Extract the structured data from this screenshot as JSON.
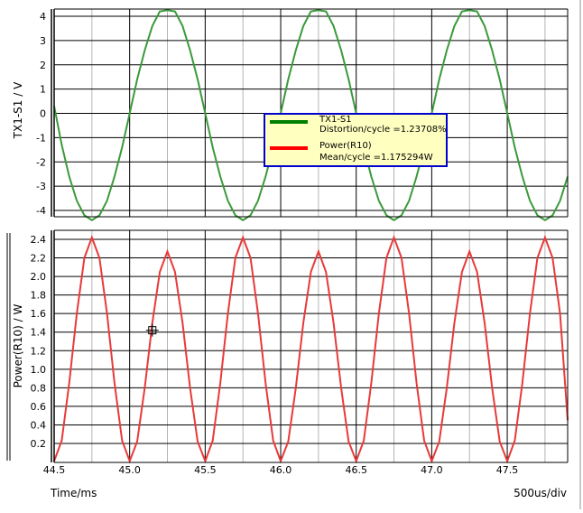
{
  "chart_data": [
    {
      "type": "line",
      "title": "",
      "ylabel": "TX1-S1 / V",
      "xlim": [
        44.5,
        47.9
      ],
      "ylim": [
        -4.4,
        4.4
      ],
      "yticks": [
        4,
        3,
        2,
        1,
        0,
        -1,
        -2,
        -3,
        -4
      ],
      "grid": true,
      "series": [
        {
          "name": "TX1-S1",
          "color": "#3a9a3a",
          "x": [
            44.5,
            44.55,
            44.6,
            44.65,
            44.7,
            44.75,
            44.8,
            44.85,
            44.9,
            44.95,
            45.0,
            45.05,
            45.1,
            45.15,
            45.2,
            45.25,
            45.3,
            45.35,
            45.4,
            45.45,
            45.5,
            45.55,
            45.6,
            45.65,
            45.7,
            45.75,
            45.8,
            45.85,
            45.9,
            45.95,
            46.0,
            46.05,
            46.1,
            46.15,
            46.2,
            46.25,
            46.3,
            46.35,
            46.4,
            46.45,
            46.5,
            46.55,
            46.6,
            46.65,
            46.7,
            46.75,
            46.8,
            46.85,
            46.9,
            46.95,
            47.0,
            47.05,
            47.1,
            47.15,
            47.2,
            47.25,
            47.3,
            47.35,
            47.4,
            47.45,
            47.5,
            47.55,
            47.6,
            47.65,
            47.7,
            47.75,
            47.8,
            47.85,
            47.9
          ],
          "values": [
            0.3,
            -1.3,
            -2.6,
            -3.6,
            -4.2,
            -4.4,
            -4.2,
            -3.6,
            -2.6,
            -1.4,
            0.0,
            1.4,
            2.6,
            3.6,
            4.2,
            4.25,
            4.2,
            3.6,
            2.6,
            1.4,
            0.0,
            -1.4,
            -2.6,
            -3.6,
            -4.2,
            -4.4,
            -4.2,
            -3.6,
            -2.6,
            -1.4,
            0.0,
            1.4,
            2.6,
            3.6,
            4.2,
            4.25,
            4.2,
            3.6,
            2.6,
            1.4,
            0.0,
            -1.4,
            -2.6,
            -3.6,
            -4.2,
            -4.4,
            -4.2,
            -3.6,
            -2.6,
            -1.4,
            0.0,
            1.4,
            2.6,
            3.6,
            4.2,
            4.25,
            4.2,
            3.6,
            2.6,
            1.4,
            0.0,
            -1.4,
            -2.6,
            -3.6,
            -4.2,
            -4.4,
            -4.2,
            -3.6,
            -2.6
          ]
        }
      ],
      "legend": {
        "placement": "center-right",
        "entries": [
          {
            "color": "#008000",
            "line1": "TX1-S1",
            "line2": "Distortion/cycle =1.23708%"
          },
          {
            "color": "#ff0000",
            "line1": "Power(R10)",
            "line2": "Mean/cycle =1.175294W"
          }
        ]
      }
    },
    {
      "type": "line",
      "title": "",
      "ylabel": "Power(R10) / W",
      "xlabel": "Time/ms",
      "x_scale_note": "500us/div",
      "xlim": [
        44.5,
        47.9
      ],
      "ylim": [
        0,
        2.5
      ],
      "xticks": [
        "44.5",
        "45.0",
        "45.5",
        "46.0",
        "46.5",
        "47.0",
        "47.5"
      ],
      "yticks": [
        "2.4",
        "2.2",
        "2.0",
        "1.8",
        "1.6",
        "1.4",
        "1.2",
        "1.0",
        "0.8",
        "0.6",
        "0.4",
        "0.2"
      ],
      "grid": true,
      "series": [
        {
          "name": "Power(R10)",
          "color": "#e83a3a",
          "x": [
            44.5,
            44.55,
            44.6,
            44.65,
            44.7,
            44.75,
            44.8,
            44.85,
            44.9,
            44.95,
            45.0,
            45.05,
            45.1,
            45.15,
            45.2,
            45.25,
            45.3,
            45.35,
            45.4,
            45.45,
            45.5,
            45.55,
            45.6,
            45.65,
            45.7,
            45.75,
            45.8,
            45.85,
            45.9,
            45.95,
            46.0,
            46.05,
            46.1,
            46.15,
            46.2,
            46.25,
            46.3,
            46.35,
            46.4,
            46.45,
            46.5,
            46.55,
            46.6,
            46.65,
            46.7,
            46.75,
            46.8,
            46.85,
            46.9,
            46.95,
            47.0,
            47.05,
            47.1,
            47.15,
            47.2,
            47.25,
            47.3,
            47.35,
            47.4,
            47.45,
            47.5,
            47.55,
            47.6,
            47.65,
            47.7,
            47.75,
            47.8,
            47.85,
            47.9
          ],
          "values": [
            0.01,
            0.23,
            0.85,
            1.6,
            2.2,
            2.42,
            2.2,
            1.6,
            0.85,
            0.23,
            0.01,
            0.22,
            0.8,
            1.5,
            2.05,
            2.27,
            2.05,
            1.5,
            0.8,
            0.22,
            0.01,
            0.23,
            0.85,
            1.6,
            2.2,
            2.42,
            2.2,
            1.6,
            0.85,
            0.23,
            0.01,
            0.22,
            0.8,
            1.5,
            2.05,
            2.27,
            2.05,
            1.5,
            0.8,
            0.22,
            0.01,
            0.23,
            0.85,
            1.6,
            2.2,
            2.42,
            2.2,
            1.6,
            0.85,
            0.23,
            0.01,
            0.22,
            0.8,
            1.5,
            2.05,
            2.27,
            2.05,
            1.5,
            0.8,
            0.22,
            0.01,
            0.23,
            0.85,
            1.6,
            2.2,
            2.42,
            2.2,
            1.6,
            0.45
          ]
        }
      ],
      "cursor": {
        "x": 45.15,
        "y": 1.42
      }
    }
  ]
}
